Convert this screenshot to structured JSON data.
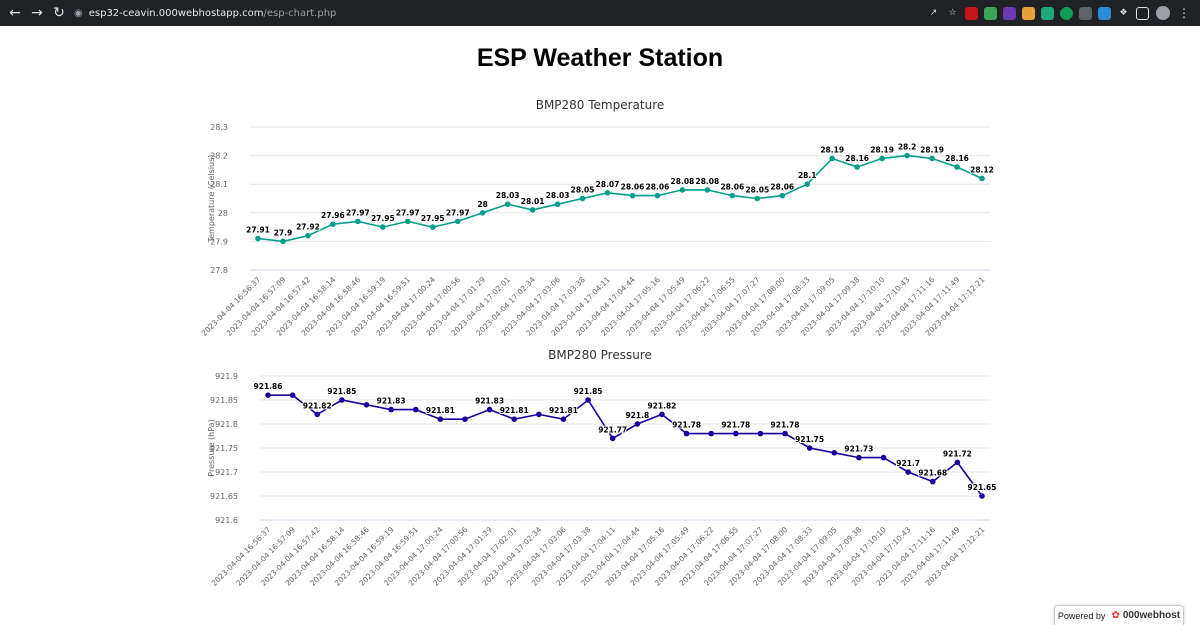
{
  "browser": {
    "back_icon": "arrow-left-icon",
    "forward_icon": "arrow-right-icon",
    "reload_icon": "reload-icon",
    "url_host": "esp32-ceavin.000webhostapp.com",
    "url_path": "/esp-chart.php"
  },
  "page": {
    "title": "ESP Weather Station"
  },
  "footer": {
    "powered_label": "Powered by",
    "brand": "000webhost"
  },
  "chart_data": [
    {
      "type": "line",
      "title": "BMP280 Temperature",
      "ylabel": "Temperature (Celsius)",
      "xlabel": "",
      "ylim": [
        27.8,
        28.3
      ],
      "yticks": [
        "28.3",
        "28.2",
        "28.1",
        "28",
        "27.9",
        "27.8"
      ],
      "ytick_values": [
        28.3,
        28.2,
        28.1,
        28.0,
        27.9,
        27.8
      ],
      "color": "#059e8a",
      "grid": true,
      "categories": [
        "2023-04-04 16:56:37",
        "2023-04-04 16:57:09",
        "2023-04-04 16:57:42",
        "2023-04-04 16:58:14",
        "2023-04-04 16:58:46",
        "2023-04-04 16:59:19",
        "2023-04-04 16:59:51",
        "2023-04-04 17:00:24",
        "2023-04-04 17:00:56",
        "2023-04-04 17:01:29",
        "2023-04-04 17:02:01",
        "2023-04-04 17:02:34",
        "2023-04-04 17:03:06",
        "2023-04-04 17:03:38",
        "2023-04-04 17:04:11",
        "2023-04-04 17:04:44",
        "2023-04-04 17:05:16",
        "2023-04-04 17:05:49",
        "2023-04-04 17:06:22",
        "2023-04-04 17:06:55",
        "2023-04-04 17:07:27",
        "2023-04-04 17:08:00",
        "2023-04-04 17:08:33",
        "2023-04-04 17:09:05",
        "2023-04-04 17:09:38",
        "2023-04-04 17:10:10",
        "2023-04-04 17:10:43",
        "2023-04-04 17:11:16",
        "2023-04-04 17:11:49",
        "2023-04-04 17:12:21"
      ],
      "values": [
        27.91,
        27.9,
        27.92,
        27.96,
        27.97,
        27.95,
        27.97,
        27.95,
        27.97,
        28,
        28.03,
        28.01,
        28.03,
        28.05,
        28.07,
        28.06,
        28.06,
        28.08,
        28.08,
        28.06,
        28.05,
        28.06,
        28.1,
        28.19,
        28.16,
        28.19,
        28.2,
        28.19,
        28.16,
        28.12
      ],
      "labels": [
        "27.91",
        "27.9",
        "27.92",
        "27.96",
        "27.97",
        "27.95",
        "27.97",
        "27.95",
        "27.97",
        "28",
        "28.03",
        "28.01",
        "28.03",
        "28.05",
        "28.07",
        "28.06",
        "28.06",
        "28.08",
        "28.08",
        "28.06",
        "28.05",
        "28.06",
        "28.1",
        "28.19",
        "28.16",
        "28.19",
        "28.2",
        "28.19",
        "28.16",
        "28.12"
      ]
    },
    {
      "type": "line",
      "title": "BMP280 Pressure",
      "ylabel": "Pressure (hPa)",
      "xlabel": "",
      "ylim": [
        921.6,
        921.9
      ],
      "yticks": [
        "921.9",
        "921.85",
        "921.8",
        "921.75",
        "921.7",
        "921.65",
        "921.6"
      ],
      "ytick_values": [
        921.9,
        921.85,
        921.8,
        921.75,
        921.7,
        921.65,
        921.6
      ],
      "color": "#18009c",
      "grid": true,
      "categories": [
        "2023-04-04 16:56:37",
        "2023-04-04 16:57:09",
        "2023-04-04 16:57:42",
        "2023-04-04 16:58:14",
        "2023-04-04 16:58:46",
        "2023-04-04 16:59:19",
        "2023-04-04 16:59:51",
        "2023-04-04 17:00:24",
        "2023-04-04 17:00:56",
        "2023-04-04 17:01:29",
        "2023-04-04 17:02:01",
        "2023-04-04 17:02:34",
        "2023-04-04 17:03:06",
        "2023-04-04 17:03:38",
        "2023-04-04 17:04:11",
        "2023-04-04 17:04:44",
        "2023-04-04 17:05:16",
        "2023-04-04 17:05:49",
        "2023-04-04 17:06:22",
        "2023-04-04 17:06:55",
        "2023-04-04 17:07:27",
        "2023-04-04 17:08:00",
        "2023-04-04 17:08:33",
        "2023-04-04 17:09:05",
        "2023-04-04 17:09:38",
        "2023-04-04 17:10:10",
        "2023-04-04 17:10:43",
        "2023-04-04 17:11:16",
        "2023-04-04 17:11:49",
        "2023-04-04 17:12:21"
      ],
      "values": [
        921.86,
        921.86,
        921.82,
        921.85,
        921.84,
        921.83,
        921.83,
        921.81,
        921.81,
        921.83,
        921.81,
        921.82,
        921.81,
        921.85,
        921.77,
        921.8,
        921.82,
        921.78,
        921.78,
        921.78,
        921.78,
        921.78,
        921.75,
        921.74,
        921.73,
        921.73,
        921.7,
        921.68,
        921.72,
        921.65
      ],
      "labels": [
        "921.86",
        "",
        "921.82",
        "921.85",
        "",
        "921.83",
        "",
        "921.81",
        "",
        "921.83",
        "921.81",
        "",
        "921.81",
        "921.85",
        "921.77",
        "921.8",
        "921.82",
        "921.78",
        "",
        "921.78",
        "",
        "921.78",
        "921.75",
        "",
        "921.73",
        "",
        "921.7",
        "921.68",
        "921.72",
        "921.65"
      ]
    }
  ]
}
